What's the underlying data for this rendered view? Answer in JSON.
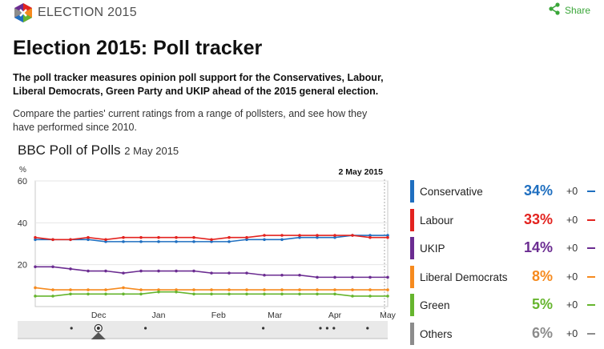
{
  "header": {
    "brand": "ELECTION 2015",
    "share_label": "Share",
    "accent": "#3aa639"
  },
  "article": {
    "title": "Election 2015: Poll tracker",
    "lede": "The poll tracker measures opinion poll support for the Conservatives, Labour, Liberal Democrats, Green Party and UKIP ahead of the 2015 general election.",
    "intro": "Compare the parties' current ratings from a range of pollsters, and see how they have performed since 2010."
  },
  "chart_header": {
    "title": "BBC Poll of Polls",
    "date": "2 May 2015"
  },
  "legend": [
    {
      "name": "Conservative",
      "value": "34%",
      "change": "+0",
      "color": "#1f6fc0"
    },
    {
      "name": "Labour",
      "value": "33%",
      "change": "+0",
      "color": "#e3231f"
    },
    {
      "name": "UKIP",
      "value": "14%",
      "change": "+0",
      "color": "#6b2c91"
    },
    {
      "name": "Liberal Democrats",
      "value": "8%",
      "change": "+0",
      "color": "#f68a1e"
    },
    {
      "name": "Green",
      "value": "5%",
      "change": "+0",
      "color": "#66b52e"
    },
    {
      "name": "Others",
      "value": "6%",
      "change": "+0",
      "color": "#8c8c8c"
    }
  ],
  "chart_data": {
    "type": "line",
    "ylabel": "%",
    "ylim": [
      0,
      60
    ],
    "yticks": [
      20,
      40,
      60
    ],
    "xlim": [
      0,
      100
    ],
    "xticks": [
      {
        "label": "Dec",
        "x": 18
      },
      {
        "label": "Jan",
        "x": 35
      },
      {
        "label": "Feb",
        "x": 52
      },
      {
        "label": "Mar",
        "x": 68
      },
      {
        "label": "Apr",
        "x": 85
      },
      {
        "label": "May",
        "x": 100
      }
    ],
    "highlight_label": "2 May 2015",
    "series": [
      {
        "name": "Conservative",
        "color": "#1f6fc0",
        "x": [
          0,
          5,
          10,
          15,
          20,
          25,
          30,
          35,
          40,
          45,
          50,
          55,
          60,
          65,
          70,
          75,
          80,
          85,
          90,
          95,
          100
        ],
        "y": [
          32,
          32,
          32,
          32,
          31,
          31,
          31,
          31,
          31,
          31,
          31,
          31,
          32,
          32,
          32,
          33,
          33,
          33,
          34,
          34,
          34
        ]
      },
      {
        "name": "Labour",
        "color": "#e3231f",
        "x": [
          0,
          5,
          10,
          15,
          20,
          25,
          30,
          35,
          40,
          45,
          50,
          55,
          60,
          65,
          70,
          75,
          80,
          85,
          90,
          95,
          100
        ],
        "y": [
          33,
          32,
          32,
          33,
          32,
          33,
          33,
          33,
          33,
          33,
          32,
          33,
          33,
          34,
          34,
          34,
          34,
          34,
          34,
          33,
          33
        ]
      },
      {
        "name": "UKIP",
        "color": "#6b2c91",
        "x": [
          0,
          5,
          10,
          15,
          20,
          25,
          30,
          35,
          40,
          45,
          50,
          55,
          60,
          65,
          70,
          75,
          80,
          85,
          90,
          95,
          100
        ],
        "y": [
          19,
          19,
          18,
          17,
          17,
          16,
          17,
          17,
          17,
          17,
          16,
          16,
          16,
          15,
          15,
          15,
          14,
          14,
          14,
          14,
          14
        ]
      },
      {
        "name": "Liberal Democrats",
        "color": "#f68a1e",
        "x": [
          0,
          5,
          10,
          15,
          20,
          25,
          30,
          35,
          40,
          45,
          50,
          55,
          60,
          65,
          70,
          75,
          80,
          85,
          90,
          95,
          100
        ],
        "y": [
          9,
          8,
          8,
          8,
          8,
          9,
          8,
          8,
          8,
          8,
          8,
          8,
          8,
          8,
          8,
          8,
          8,
          8,
          8,
          8,
          8
        ]
      },
      {
        "name": "Green",
        "color": "#66b52e",
        "x": [
          0,
          5,
          10,
          15,
          20,
          25,
          30,
          35,
          40,
          45,
          50,
          55,
          60,
          65,
          70,
          75,
          80,
          85,
          90,
          95,
          100
        ],
        "y": [
          5,
          5,
          6,
          6,
          6,
          6,
          6,
          7,
          7,
          6,
          6,
          6,
          6,
          6,
          6,
          6,
          6,
          6,
          5,
          5,
          5
        ]
      }
    ],
    "timeline_events": [
      16,
      38,
      73,
      90,
      92,
      94,
      104
    ],
    "timeline_handle": 24
  }
}
